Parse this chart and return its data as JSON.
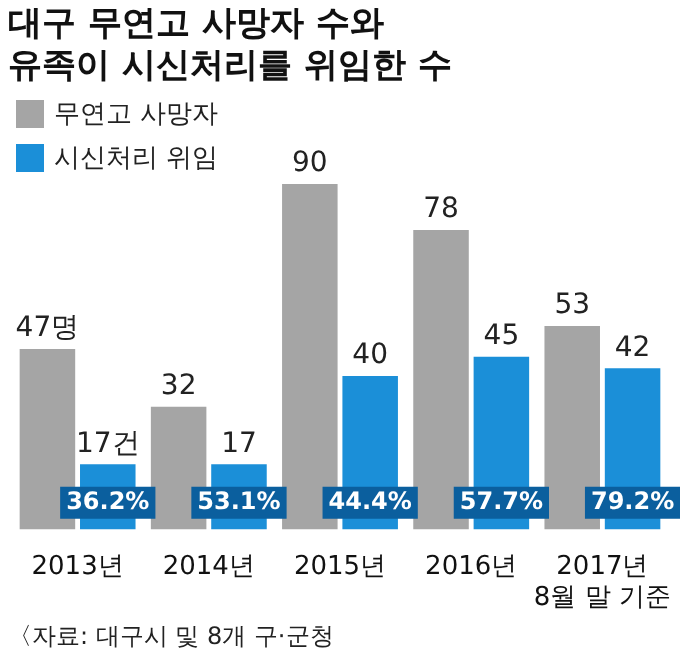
{
  "chart_data": {
    "type": "bar",
    "title": "대구 무연고 사망자 수와\n유족이 시신처리를 위임한 수",
    "categories": [
      "2013년",
      "2014년",
      "2015년",
      "2016년",
      "2017년\n8월 말 기준"
    ],
    "series": [
      {
        "name": "무연고 사망자",
        "color": "#a5a5a5",
        "values": [
          47,
          32,
          90,
          78,
          53
        ],
        "value_labels": [
          "47명",
          "32",
          "90",
          "78",
          "53"
        ]
      },
      {
        "name": "시신처리 위임",
        "color": "#1b8fd8",
        "values": [
          17,
          17,
          40,
          45,
          42
        ],
        "value_labels": [
          "17건",
          "17",
          "40",
          "45",
          "42"
        ]
      }
    ],
    "annotations": [
      {
        "text": "36.2%",
        "x": "2013년",
        "y": 7
      },
      {
        "text": "53.1%",
        "x": "2014년",
        "y": 7
      },
      {
        "text": "44.4%",
        "x": "2015년",
        "y": 7
      },
      {
        "text": "57.7%",
        "x": "2016년",
        "y": 7
      },
      {
        "text": "79.2%",
        "x": "2017년\n8월 말 기준",
        "y": 7
      },
      "〈자료: 대구시 및 8개 구·군청"
    ],
    "legend": "top left",
    "grid": false
  }
}
